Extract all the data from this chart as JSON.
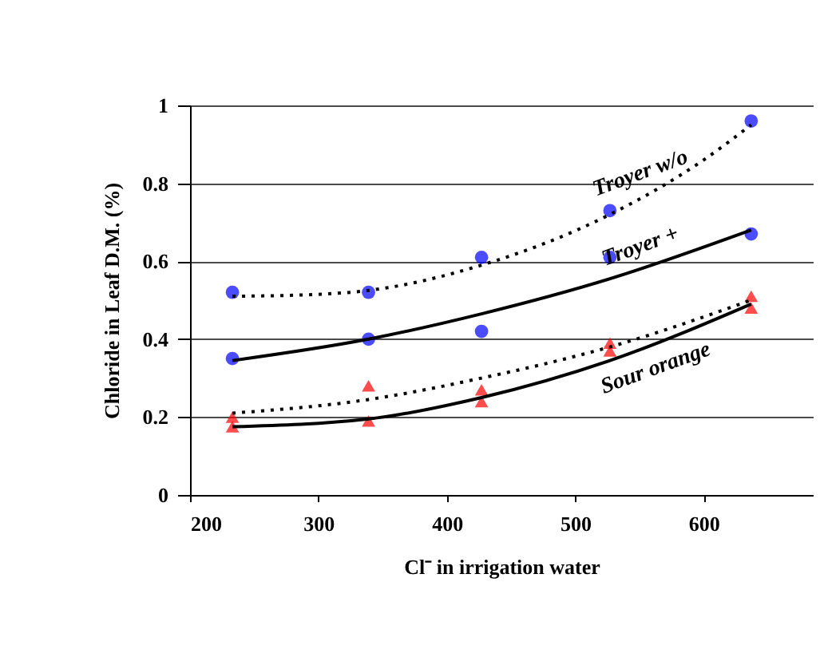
{
  "chart_data": {
    "type": "scatter",
    "xlabel": "Cl⁻ in irrigation water",
    "ylabel": "Chloride in Leaf D.M. (%)",
    "xlim": [
      200,
      685
    ],
    "xticks": [
      200,
      300,
      400,
      500,
      600
    ],
    "ylim": [
      0,
      1
    ],
    "yticks": [
      0,
      0.2,
      0.4,
      0.6,
      0.8,
      1
    ],
    "grid": "y",
    "legend": false,
    "series": [
      {
        "marker": "circle",
        "color": "#0000ff",
        "x": [
          233,
          339,
          427,
          527,
          637
        ],
        "values": [
          0.52,
          0.52,
          0.61,
          0.73,
          0.96
        ]
      },
      {
        "marker": "circle",
        "color": "#0000ff",
        "x": [
          233,
          339,
          427,
          527,
          637
        ],
        "values": [
          0.35,
          0.4,
          0.42,
          0.61,
          0.67
        ]
      },
      {
        "marker": "triangle",
        "color": "#ff0000",
        "x": [
          233,
          339,
          427,
          527,
          637
        ],
        "values": [
          0.2,
          0.28,
          0.27,
          0.39,
          0.51
        ]
      },
      {
        "marker": "triangle",
        "color": "#ff0000",
        "x": [
          233,
          339,
          427,
          527,
          637
        ],
        "values": [
          0.175,
          0.19,
          0.24,
          0.37,
          0.48
        ]
      },
      {
        "type": "line",
        "name": "Troyer w/o",
        "marker": "none",
        "line_style": "dotted",
        "color": "#000000",
        "x": [
          233,
          300,
          339,
          427,
          527,
          600,
          637
        ],
        "values": [
          0.51,
          0.515,
          0.525,
          0.59,
          0.72,
          0.86,
          0.95
        ]
      },
      {
        "type": "line",
        "name": "Troyer +",
        "marker": "none",
        "line_style": "solid",
        "color": "#000000",
        "x": [
          233,
          339,
          427,
          527,
          637
        ],
        "values": [
          0.345,
          0.4,
          0.465,
          0.555,
          0.68
        ]
      },
      {
        "type": "line",
        "marker": "none",
        "line_style": "dotted",
        "color": "#000000",
        "x": [
          233,
          339,
          427,
          527,
          637
        ],
        "values": [
          0.21,
          0.245,
          0.3,
          0.38,
          0.5
        ]
      },
      {
        "type": "line",
        "name": "Sour orange",
        "marker": "none",
        "line_style": "solid",
        "color": "#000000",
        "x": [
          233,
          339,
          427,
          527,
          637
        ],
        "values": [
          0.175,
          0.195,
          0.25,
          0.345,
          0.49
        ]
      }
    ]
  }
}
